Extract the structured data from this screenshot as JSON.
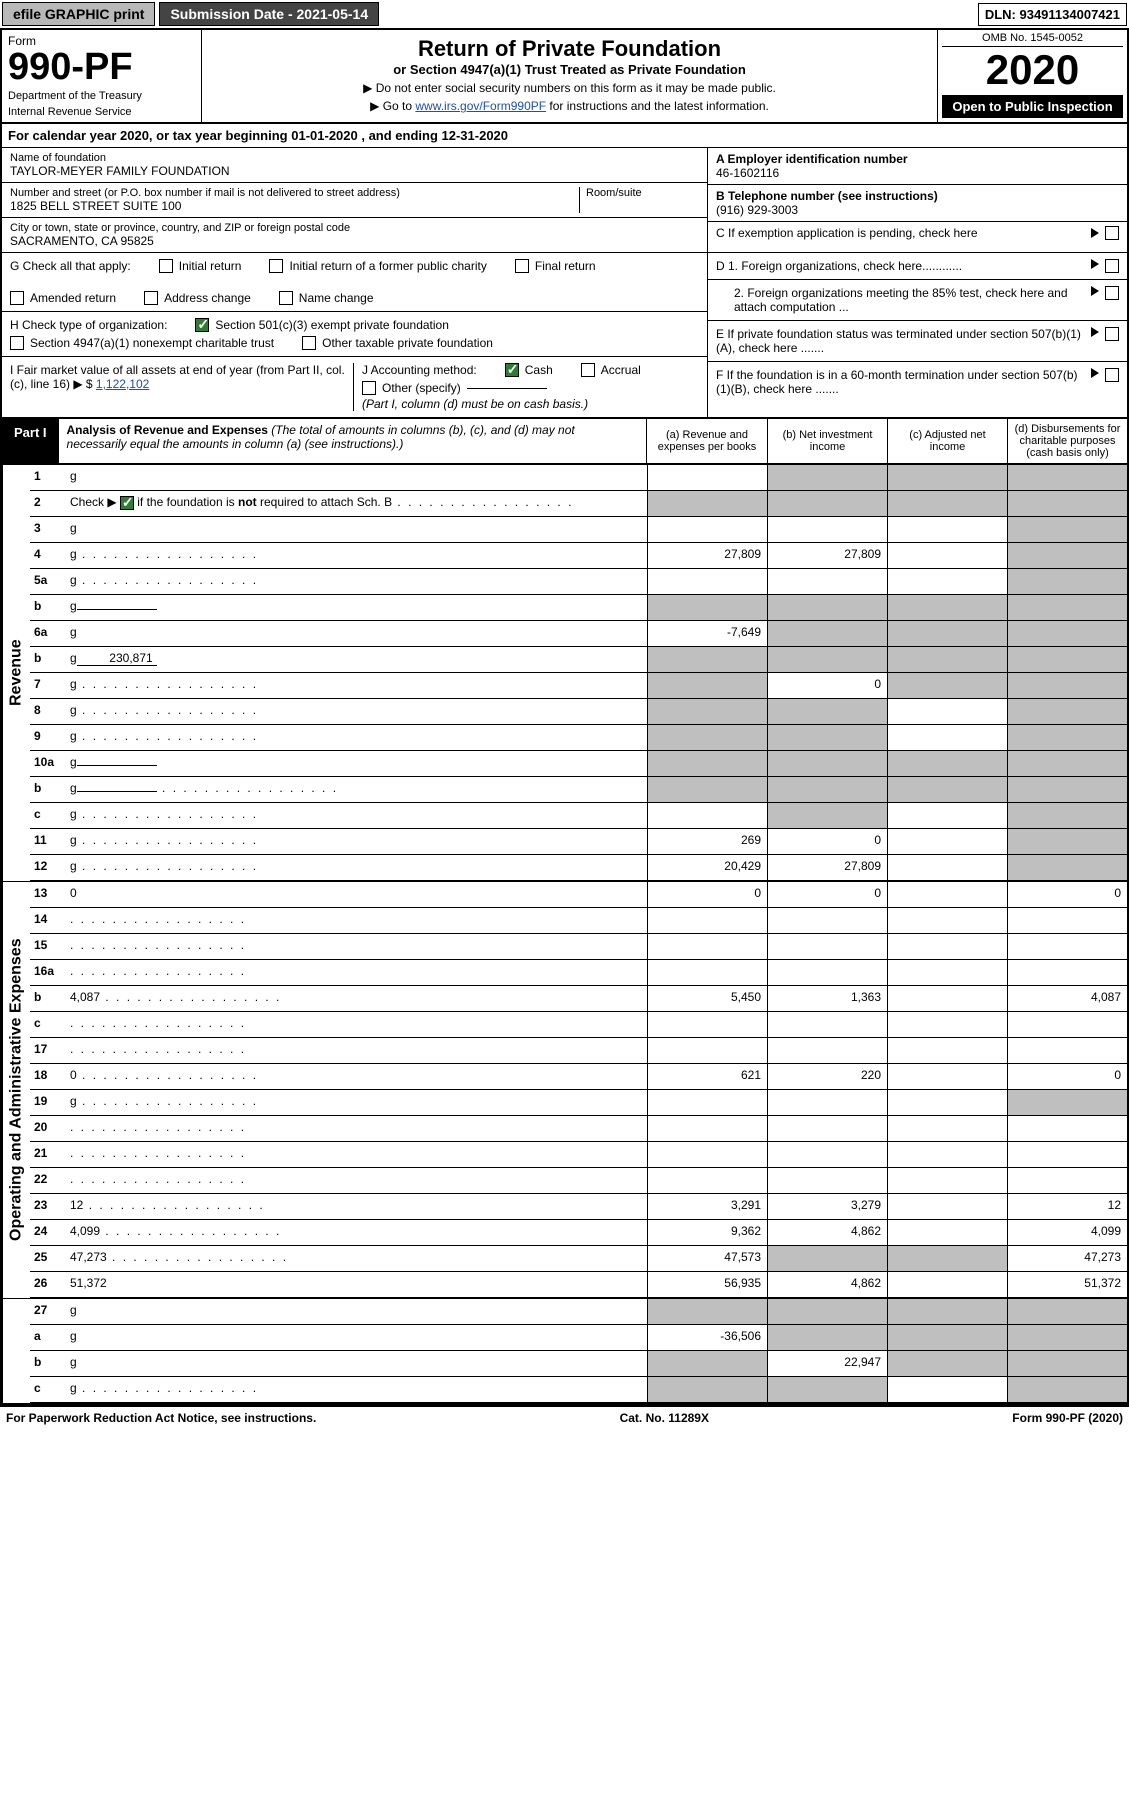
{
  "topbar": {
    "efile": "efile GRAPHIC print",
    "submission_label": "Submission Date - ",
    "submission_date": "2021-05-14",
    "dln_label": "DLN: ",
    "dln": "93491134007421"
  },
  "header": {
    "form_word": "Form",
    "form_number": "990-PF",
    "dept": "Department of the Treasury",
    "irs": "Internal Revenue Service",
    "title": "Return of Private Foundation",
    "subtitle": "or Section 4947(a)(1) Trust Treated as Private Foundation",
    "instr1": "▶ Do not enter social security numbers on this form as it may be made public.",
    "instr2_pre": "▶ Go to ",
    "instr2_link": "www.irs.gov/Form990PF",
    "instr2_post": " for instructions and the latest information.",
    "omb": "OMB No. 1545-0052",
    "year": "2020",
    "open_pub": "Open to Public Inspection"
  },
  "cal_year": {
    "text_pre": "For calendar year 2020, or tax year beginning ",
    "begin": "01-01-2020",
    "text_mid": " , and ending ",
    "end": "12-31-2020"
  },
  "id": {
    "name_label": "Name of foundation",
    "name": "TAYLOR-MEYER FAMILY FOUNDATION",
    "addr_label": "Number and street (or P.O. box number if mail is not delivered to street address)",
    "addr": "1825 BELL STREET SUITE 100",
    "room_label": "Room/suite",
    "city_label": "City or town, state or province, country, and ZIP or foreign postal code",
    "city": "SACRAMENTO, CA  95825",
    "a_label": "A Employer identification number",
    "a_val": "46-1602116",
    "b_label": "B Telephone number (see instructions)",
    "b_val": "(916) 929-3003",
    "c_label": "C If exemption application is pending, check here",
    "d1_label": "D 1. Foreign organizations, check here............",
    "d2_label": "2. Foreign organizations meeting the 85% test, check here and attach computation ...",
    "e_label": "E  If private foundation status was terminated under section 507(b)(1)(A), check here .......",
    "f_label": "F  If the foundation is in a 60-month termination under section 507(b)(1)(B), check here ......."
  },
  "g": {
    "label": "G Check all that apply:",
    "opts": [
      "Initial return",
      "Initial return of a former public charity",
      "Final return",
      "Amended return",
      "Address change",
      "Name change"
    ]
  },
  "h": {
    "label": "H Check type of organization:",
    "opt1": "Section 501(c)(3) exempt private foundation",
    "opt2": "Section 4947(a)(1) nonexempt charitable trust",
    "opt3": "Other taxable private foundation"
  },
  "i": {
    "label_pre": "I Fair market value of all assets at end of year (from Part II, col. (c), line 16) ▶ $ ",
    "val": "1,122,102"
  },
  "j": {
    "label": "J Accounting method:",
    "cash": "Cash",
    "accrual": "Accrual",
    "other": "Other (specify)",
    "note": "(Part I, column (d) must be on cash basis.)"
  },
  "part1": {
    "tab": "Part I",
    "title": "Analysis of Revenue and Expenses",
    "title_note": " (The total of amounts in columns (b), (c), and (d) may not necessarily equal the amounts in column (a) (see instructions).)",
    "col_a": "(a) Revenue and expenses per books",
    "col_b": "(b) Net investment income",
    "col_c": "(c) Adjusted net income",
    "col_d": "(d) Disbursements for charitable purposes (cash basis only)"
  },
  "sections": {
    "revenue": "Revenue",
    "op_admin": "Operating and Administrative Expenses"
  },
  "rows": [
    {
      "n": "1",
      "d": "g",
      "a": "",
      "b": "g",
      "c": "g"
    },
    {
      "n": "2",
      "d": "g",
      "dotted": true,
      "a": "g",
      "b": "g",
      "c": "g",
      "hascheck": true
    },
    {
      "n": "3",
      "d": "g",
      "a": "",
      "b": "",
      "c": ""
    },
    {
      "n": "4",
      "d": "g",
      "dotted": true,
      "a": "27,809",
      "b": "27,809",
      "c": ""
    },
    {
      "n": "5a",
      "d": "g",
      "dotted": true,
      "a": "",
      "b": "",
      "c": ""
    },
    {
      "n": "b",
      "d": "g",
      "inline": "",
      "a": "g",
      "b": "g",
      "c": "g"
    },
    {
      "n": "6a",
      "d": "g",
      "a": "-7,649",
      "b": "g",
      "c": "g"
    },
    {
      "n": "b",
      "d": "g",
      "inline": "230,871",
      "a": "g",
      "b": "g",
      "c": "g"
    },
    {
      "n": "7",
      "d": "g",
      "dotted": true,
      "a": "g",
      "b": "0",
      "c": "g"
    },
    {
      "n": "8",
      "d": "g",
      "dotted": true,
      "a": "g",
      "b": "g",
      "c": ""
    },
    {
      "n": "9",
      "d": "g",
      "dotted": true,
      "a": "g",
      "b": "g",
      "c": ""
    },
    {
      "n": "10a",
      "d": "g",
      "inline": "",
      "a": "g",
      "b": "g",
      "c": "g"
    },
    {
      "n": "b",
      "d": "g",
      "dotted": true,
      "inline": "",
      "a": "g",
      "b": "g",
      "c": "g"
    },
    {
      "n": "c",
      "d": "g",
      "dotted": true,
      "a": "",
      "b": "g",
      "c": ""
    },
    {
      "n": "11",
      "d": "g",
      "dotted": true,
      "a": "269",
      "b": "0",
      "c": ""
    },
    {
      "n": "12",
      "d": "g",
      "dotted": true,
      "a": "20,429",
      "b": "27,809",
      "c": ""
    }
  ],
  "rows2": [
    {
      "n": "13",
      "d": "0",
      "a": "0",
      "b": "0",
      "c": ""
    },
    {
      "n": "14",
      "d": "",
      "dotted": true,
      "a": "",
      "b": "",
      "c": ""
    },
    {
      "n": "15",
      "d": "",
      "dotted": true,
      "a": "",
      "b": "",
      "c": ""
    },
    {
      "n": "16a",
      "d": "",
      "dotted": true,
      "a": "",
      "b": "",
      "c": ""
    },
    {
      "n": "b",
      "d": "4,087",
      "dotted": true,
      "a": "5,450",
      "b": "1,363",
      "c": ""
    },
    {
      "n": "c",
      "d": "",
      "dotted": true,
      "a": "",
      "b": "",
      "c": ""
    },
    {
      "n": "17",
      "d": "",
      "dotted": true,
      "a": "",
      "b": "",
      "c": ""
    },
    {
      "n": "18",
      "d": "0",
      "dotted": true,
      "a": "621",
      "b": "220",
      "c": ""
    },
    {
      "n": "19",
      "d": "g",
      "dotted": true,
      "a": "",
      "b": "",
      "c": ""
    },
    {
      "n": "20",
      "d": "",
      "dotted": true,
      "a": "",
      "b": "",
      "c": ""
    },
    {
      "n": "21",
      "d": "",
      "dotted": true,
      "a": "",
      "b": "",
      "c": ""
    },
    {
      "n": "22",
      "d": "",
      "dotted": true,
      "a": "",
      "b": "",
      "c": ""
    },
    {
      "n": "23",
      "d": "12",
      "dotted": true,
      "a": "3,291",
      "b": "3,279",
      "c": ""
    },
    {
      "n": "24",
      "d": "4,099",
      "dotted": true,
      "a": "9,362",
      "b": "4,862",
      "c": ""
    },
    {
      "n": "25",
      "d": "47,273",
      "dotted": true,
      "a": "47,573",
      "b": "g",
      "c": "g"
    },
    {
      "n": "26",
      "d": "51,372",
      "a": "56,935",
      "b": "4,862",
      "c": ""
    }
  ],
  "rows3": [
    {
      "n": "27",
      "d": "g",
      "a": "g",
      "b": "g",
      "c": "g"
    },
    {
      "n": "a",
      "d": "g",
      "a": "-36,506",
      "b": "g",
      "c": "g"
    },
    {
      "n": "b",
      "d": "g",
      "a": "g",
      "b": "22,947",
      "c": "g"
    },
    {
      "n": "c",
      "d": "g",
      "dotted": true,
      "a": "g",
      "b": "g",
      "c": ""
    }
  ],
  "footer": {
    "pra": "For Paperwork Reduction Act Notice, see instructions.",
    "cat": "Cat. No. 11289X",
    "form": "Form 990-PF (2020)"
  },
  "colors": {
    "grey_cell": "#bfbfbf",
    "link": "#1a4fb3",
    "check_green": "#2e7d32"
  }
}
